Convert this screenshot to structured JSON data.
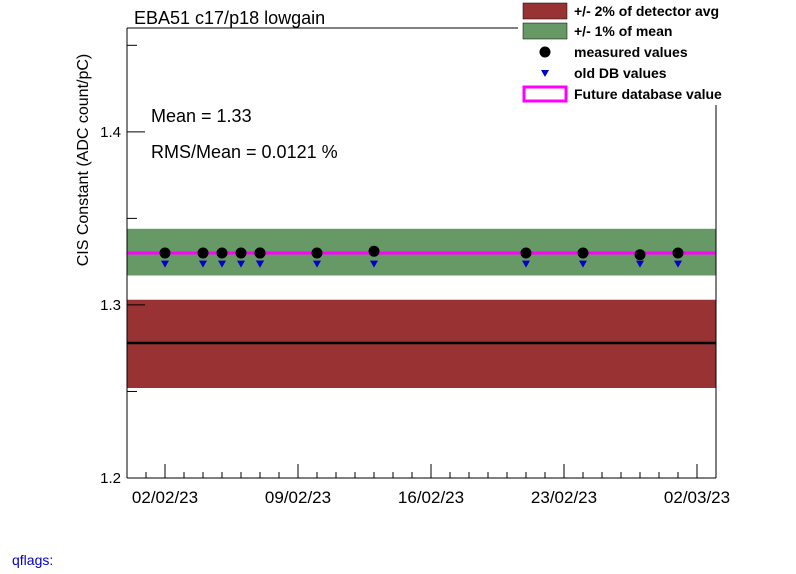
{
  "chart_data": {
    "type": "scatter",
    "title": "EBA51 c17/p18 lowgain",
    "ylabel": "CIS Constant (ADC count/pC)",
    "xlabel": "",
    "x_type": "date",
    "xlim": [
      "2023-01-31",
      "2023-03-03"
    ],
    "ylim": [
      1.2,
      1.46
    ],
    "x_ticks": [
      "2023-02-02",
      "2023-02-09",
      "2023-02-16",
      "2023-02-23",
      "2023-03-02"
    ],
    "x_tick_labels": [
      "02/02/23",
      "09/02/23",
      "16/02/23",
      "23/02/23",
      "02/03/23"
    ],
    "y_ticks": [
      1.2,
      1.3,
      1.4
    ],
    "y_tick_labels": [
      "1.2",
      "1.3",
      "1.4"
    ],
    "detector_avg": 1.278,
    "detector_band": [
      1.252,
      1.303
    ],
    "mean_band": [
      1.317,
      1.344
    ],
    "future_db_value": 1.33,
    "series": [
      {
        "name": "measured values",
        "marker": "circle",
        "color": "#000000",
        "x": [
          "2023-02-02",
          "2023-02-04",
          "2023-02-05",
          "2023-02-06",
          "2023-02-07",
          "2023-02-07",
          "2023-02-10",
          "2023-02-13",
          "2023-02-21",
          "2023-02-24",
          "2023-02-27",
          "2023-03-01"
        ],
        "values": [
          1.33,
          1.33,
          1.33,
          1.33,
          1.33,
          1.33,
          1.33,
          1.331,
          1.33,
          1.33,
          1.329,
          1.33
        ]
      },
      {
        "name": "old DB values",
        "marker": "triangle-down",
        "color": "#0000cc",
        "x": [
          "2023-02-02",
          "2023-02-04",
          "2023-02-05",
          "2023-02-06",
          "2023-02-07",
          "2023-02-07",
          "2023-02-10",
          "2023-02-13",
          "2023-02-21",
          "2023-02-24",
          "2023-02-27",
          "2023-03-01"
        ],
        "values": [
          1.325,
          1.325,
          1.325,
          1.325,
          1.325,
          1.325,
          1.325,
          1.325,
          1.325,
          1.325,
          1.325,
          1.325
        ]
      }
    ],
    "legend": {
      "placement": "top-right",
      "entries": [
        {
          "label": "+/- 2% of detector avg",
          "kind": "box",
          "color": "#993333"
        },
        {
          "label": "+/- 1% of mean",
          "kind": "box",
          "color": "#669966"
        },
        {
          "label": "measured values",
          "kind": "circle",
          "color": "#000000"
        },
        {
          "label": "old DB values",
          "kind": "triangle",
          "color": "#0000cc"
        },
        {
          "label": "Future database value",
          "kind": "outline",
          "color": "#ff00ff"
        }
      ]
    },
    "annotations": [
      "Mean = 1.33",
      "RMS/Mean = 0.0121 %"
    ],
    "colors": {
      "detector_band": "#993333",
      "mean_band": "#669966",
      "future_line": "#ff00ff",
      "detector_line": "#000000"
    }
  },
  "footer": {
    "qflags": "qflags:"
  }
}
